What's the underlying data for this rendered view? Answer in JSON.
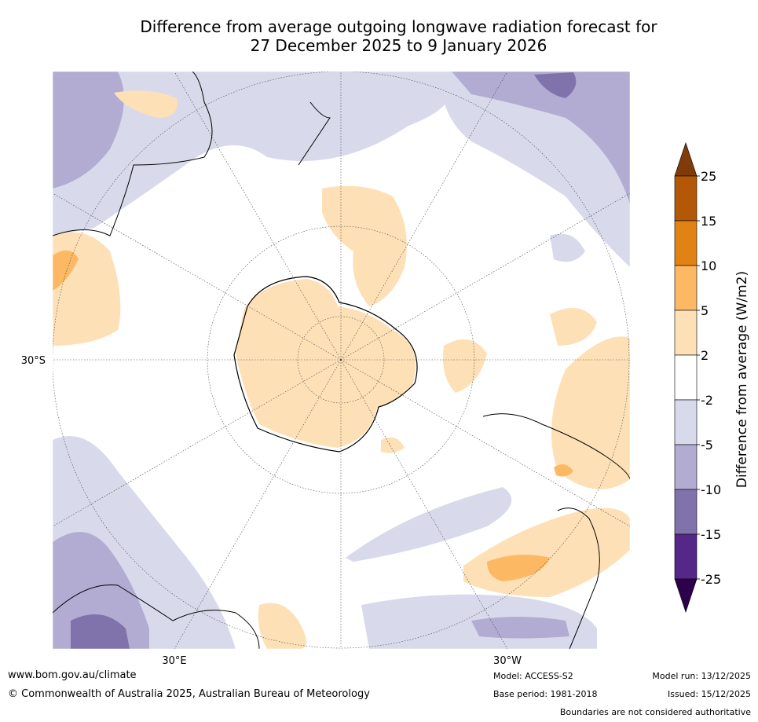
{
  "chart_data": {
    "type": "heatmap",
    "title_line1": "Difference from average outgoing longwave radiation forecast for",
    "title_line2": "27 December 2025 to 9 January 2026",
    "projection": "south polar stereographic",
    "lat_label": "30°S",
    "lon_labels": [
      "30°E",
      "30°W"
    ],
    "colorbar": {
      "label": "Difference from average (W/m2)",
      "ticks": [
        "25",
        "15",
        "10",
        "5",
        "2",
        "-2",
        "-5",
        "-10",
        "-15",
        "-25"
      ],
      "bins": [
        {
          "range": ">25",
          "color": "#7f3b08"
        },
        {
          "range": "15 to 25",
          "color": "#b35806"
        },
        {
          "range": "10 to 15",
          "color": "#e08214"
        },
        {
          "range": "5 to 10",
          "color": "#fdb863"
        },
        {
          "range": "2 to 5",
          "color": "#fee0b6"
        },
        {
          "range": "-2 to 2",
          "color": "#ffffff"
        },
        {
          "range": "-5 to -2",
          "color": "#d8daeb"
        },
        {
          "range": "-10 to -5",
          "color": "#b2abd2"
        },
        {
          "range": "-15 to -10",
          "color": "#8073ac"
        },
        {
          "range": "-25 to -15",
          "color": "#542788"
        },
        {
          "range": "<-25",
          "color": "#2d004b"
        }
      ]
    }
  },
  "footer": {
    "website": "www.bom.gov.au/climate",
    "copyright": "© Commonwealth of Australia 2025, Australian Bureau of Meteorology",
    "model": "Model: ACCESS-S2",
    "base_period": "Base period: 1981-2018",
    "model_run": "Model run: 13/12/2025",
    "issued": "Issued: 15/12/2025",
    "disclaimer": "Boundaries are not considered authoritative"
  }
}
